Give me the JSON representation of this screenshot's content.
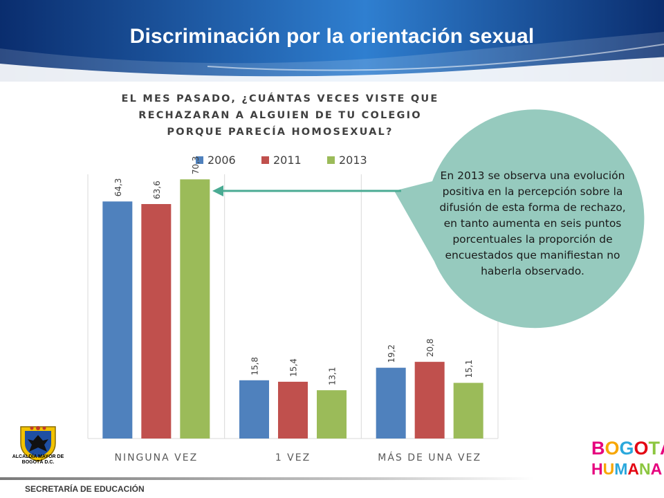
{
  "slide": {
    "title": "Discriminación por la orientación sexual",
    "org_label": "ALCALDÍA MAYOR DE BOGOTÁ D.C.",
    "footer_text": "SECRETARÍA DE EDUCACIÓN",
    "brand_logo": {
      "line1": [
        "B",
        "O",
        "G",
        "O",
        "T",
        "Á"
      ],
      "line2": [
        "H",
        "U",
        "M",
        "A",
        "N",
        "A"
      ],
      "colors": [
        "#e6007e",
        "#f7a600",
        "#2aa8dc",
        "#e30613",
        "#8cc63f",
        "#e6007e"
      ]
    },
    "callout": "En 2013 se observa una evolución positiva en la percepción sobre la difusión de esta forma de rechazo, en tanto aumenta en seis puntos porcentuales  la proporción de encuestados que manifiestan no haberla observado."
  },
  "colors": {
    "header_dark": "#0a2d6e",
    "header_light": "#2f7fd0",
    "callout_fill": "#96cabe",
    "arrow": "#4aab93"
  },
  "chart_data": {
    "type": "bar",
    "title_lines": [
      "EL MES PASADO, ¿CUÁNTAS VECES VISTE QUE",
      "RECHAZARAN A ALGUIEN DE TU COLEGIO",
      "PORQUE PARECÍA HOMOSEXUAL?"
    ],
    "categories": [
      "NINGUNA VEZ",
      "1 VEZ",
      "MÁS DE UNA VEZ"
    ],
    "series": [
      {
        "name": "2006",
        "color": "#4f81bd",
        "values": [
          64.3,
          15.8,
          19.2
        ],
        "labels": [
          "64,3",
          "15,8",
          "19,2"
        ]
      },
      {
        "name": "2011",
        "color": "#c0504d",
        "values": [
          63.6,
          15.4,
          20.8
        ],
        "labels": [
          "63,6",
          "15,4",
          "20,8"
        ]
      },
      {
        "name": "2013",
        "color": "#9bbb59",
        "values": [
          70.3,
          13.1,
          15.1
        ],
        "labels": [
          "70,3",
          "13,1",
          "15,1"
        ]
      }
    ],
    "ylim": [
      0,
      100
    ],
    "grid": false,
    "legend": "top"
  }
}
